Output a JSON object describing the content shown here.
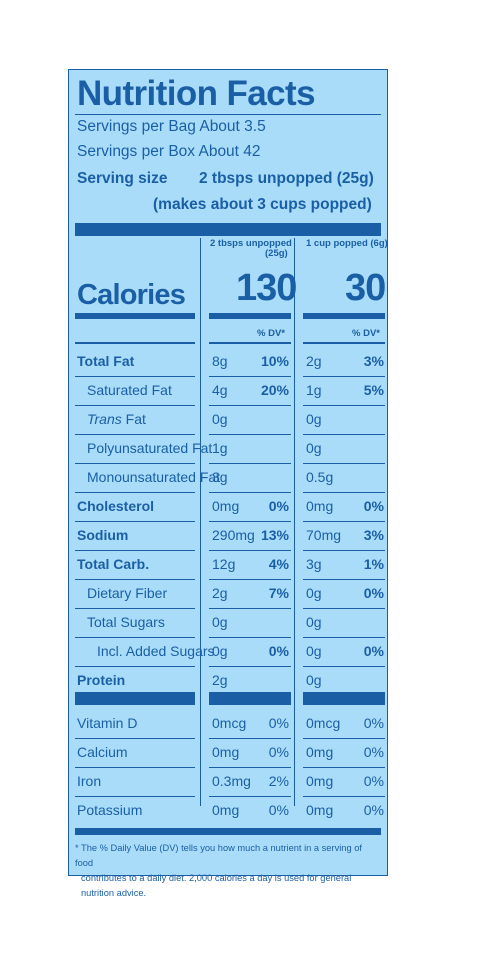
{
  "label": {
    "title": "Nutrition Facts",
    "servings_bag": "Servings per Bag About 3.5",
    "servings_box": "Servings per Box About 42",
    "serving_size_label": "Serving size",
    "serving_size_value": "2 tbsps unpopped (25g)",
    "serving_size_note": "(makes about 3 cups popped)",
    "col1_header_line1": "2 tbsps unpopped",
    "col1_header_line2": "(25g)",
    "col2_header": "1 cup popped (6g)",
    "calories_label": "Calories",
    "calories_col1": "130",
    "calories_col2": "30",
    "dv_label": "% DV*",
    "footnote_line1": "* The % Daily Value (DV) tells you how much a nutrient in a serving of food",
    "footnote_line2": "contributes to a daily diet. 2,000 calories a day is used for general nutrition advice."
  },
  "nutrients": [
    {
      "name": "Total Fat",
      "amt1": "8g",
      "dv1": "10%",
      "amt2": "2g",
      "dv2": "3%"
    },
    {
      "name": "Saturated Fat",
      "amt1": "4g",
      "dv1": "20%",
      "amt2": "1g",
      "dv2": "5%"
    },
    {
      "name_italic": "Trans",
      "name_rest": " Fat",
      "amt1": "0g",
      "dv1": "",
      "amt2": "0g",
      "dv2": ""
    },
    {
      "name": "Polyunsaturated Fat",
      "amt1": "1g",
      "dv1": "",
      "amt2": "0g",
      "dv2": ""
    },
    {
      "name": "Monounsaturated Fat",
      "amt1": "3g",
      "dv1": "",
      "amt2": "0.5g",
      "dv2": ""
    },
    {
      "name": "Cholesterol",
      "amt1": "0mg",
      "dv1": "0%",
      "amt2": "0mg",
      "dv2": "0%"
    },
    {
      "name": "Sodium",
      "amt1": "290mg",
      "dv1": "13%",
      "amt2": "70mg",
      "dv2": "3%"
    },
    {
      "name": "Total Carb.",
      "amt1": "12g",
      "dv1": "4%",
      "amt2": "3g",
      "dv2": "1%"
    },
    {
      "name": "Dietary Fiber",
      "amt1": "2g",
      "dv1": "7%",
      "amt2": "0g",
      "dv2": "0%"
    },
    {
      "name": "Total Sugars",
      "amt1": "0g",
      "dv1": "",
      "amt2": "0g",
      "dv2": ""
    },
    {
      "name": "Incl. Added Sugars",
      "amt1": "0g",
      "dv1": "0%",
      "amt2": "0g",
      "dv2": "0%"
    },
    {
      "name": "Protein",
      "amt1": "2g",
      "dv1": "",
      "amt2": "0g",
      "dv2": ""
    }
  ],
  "vitamins": [
    {
      "name": "Vitamin D",
      "amt1": "0mcg",
      "dv1": "0%",
      "amt2": "0mcg",
      "dv2": "0%"
    },
    {
      "name": "Calcium",
      "amt1": "0mg",
      "dv1": "0%",
      "amt2": "0mg",
      "dv2": "0%"
    },
    {
      "name": "Iron",
      "amt1": "0.3mg",
      "dv1": "2%",
      "amt2": "0mg",
      "dv2": "0%"
    },
    {
      "name": "Potassium",
      "amt1": "0mg",
      "dv1": "0%",
      "amt2": "0mg",
      "dv2": "0%"
    }
  ],
  "colors": {
    "ink": "#1a5fa5",
    "background": "#a9dcf9"
  }
}
